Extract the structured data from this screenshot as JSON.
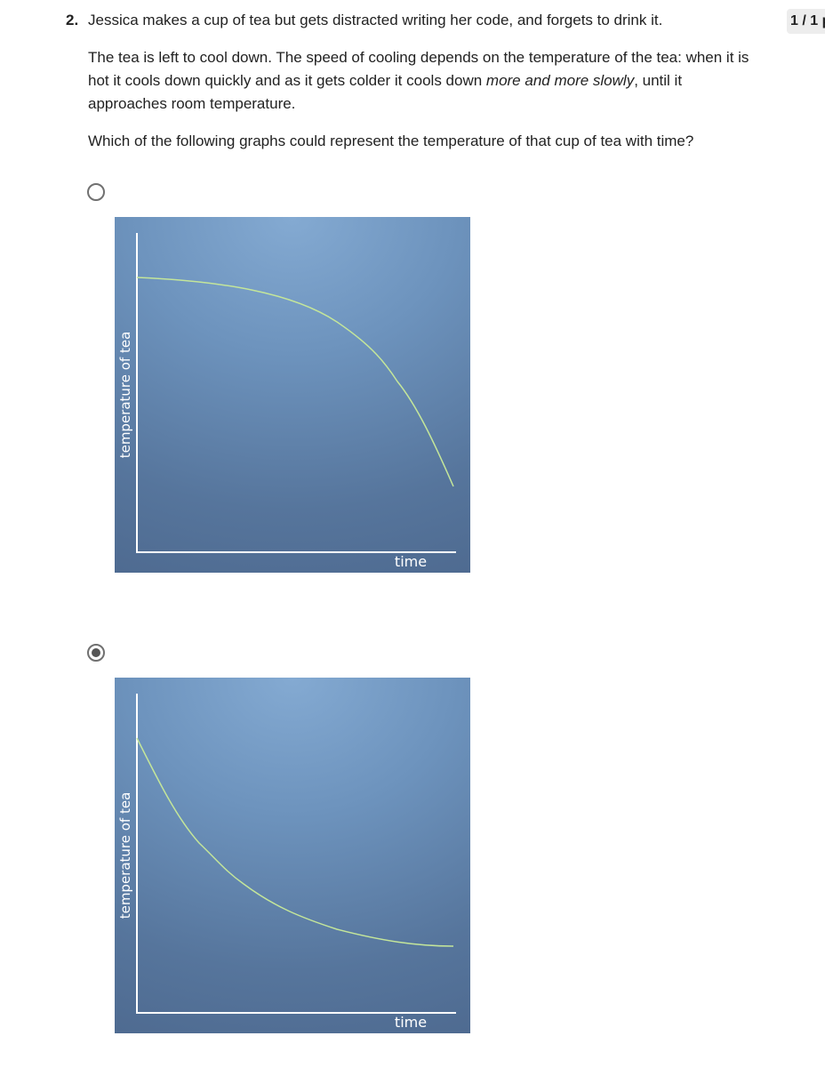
{
  "question": {
    "number": "2.",
    "first_line": "Jessica makes a cup of tea but gets distracted writing her code, and forgets to drink it.",
    "description_start": "The tea is left to cool down. The speed of cooling depends on the temperature of the tea: when it is hot it cools down quickly and as it gets colder it cools down ",
    "description_emphasis": "more and more slowly",
    "description_end": ", until it approaches room temperature.",
    "prompt": "Which of the following graphs could represent the temperature of that cup of tea with time?"
  },
  "score": "1 / 1 p",
  "options": [
    {
      "selected": false,
      "curve": "cooling speeds up over time (concave down)",
      "xlabel": "time",
      "ylabel": "temperature of tea"
    },
    {
      "selected": true,
      "curve": "cooling slows down over time (exponential decay)",
      "xlabel": "time",
      "ylabel": "temperature of tea"
    }
  ],
  "colors": {
    "curve": "#c4e69a",
    "axis": "#ffffff",
    "graph_top": "#84aad2",
    "graph_bottom": "#4e6a90"
  }
}
